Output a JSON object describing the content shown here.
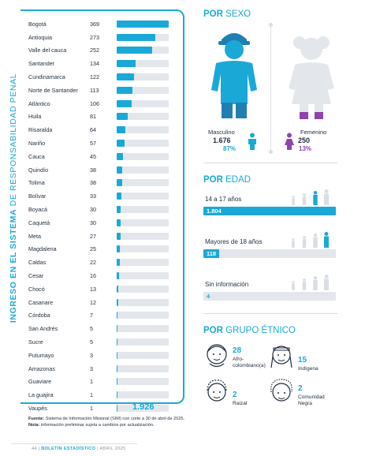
{
  "side_title": {
    "bold": "INGRESO EN EL SISTEMA",
    "regular": " DE RESPONSABILIDAD PENAL"
  },
  "departments": [
    {
      "name": "Bogotá",
      "value": 369
    },
    {
      "name": "Antioquia",
      "value": 273
    },
    {
      "name": "Valle del cauca",
      "value": 252
    },
    {
      "name": "Santander",
      "value": 134
    },
    {
      "name": "Cundinamarca",
      "value": 122
    },
    {
      "name": "Norte de Santander",
      "value": 113
    },
    {
      "name": "Atlántico",
      "value": 106
    },
    {
      "name": "Huila",
      "value": 81
    },
    {
      "name": "Risaralda",
      "value": 64
    },
    {
      "name": "Nariño",
      "value": 57
    },
    {
      "name": "Cauca",
      "value": 45
    },
    {
      "name": "Quindío",
      "value": 38
    },
    {
      "name": "Tolima",
      "value": 38
    },
    {
      "name": "Bolívar",
      "value": 33
    },
    {
      "name": "Boyacá",
      "value": 30
    },
    {
      "name": "Caquetá",
      "value": 30
    },
    {
      "name": "Meta",
      "value": 27
    },
    {
      "name": "Magdalena",
      "value": 25
    },
    {
      "name": "Caldas",
      "value": 22
    },
    {
      "name": "Cesar",
      "value": 16
    },
    {
      "name": "Chocó",
      "value": 13
    },
    {
      "name": "Casanare",
      "value": 12
    },
    {
      "name": "Córdoba",
      "value": 7
    },
    {
      "name": "San Andrés",
      "value": 5
    },
    {
      "name": "Sucre",
      "value": 5
    },
    {
      "name": "Putumayo",
      "value": 3
    },
    {
      "name": "Amazonas",
      "value": 3
    },
    {
      "name": "Guaviare",
      "value": 1
    },
    {
      "name": "La guajira",
      "value": 1
    },
    {
      "name": "Vaupés",
      "value": 1
    }
  ],
  "dept_max": 369,
  "total": "1.926",
  "sexo": {
    "title_bold": "POR",
    "title_rest": " SEXO",
    "male": {
      "label": "Masculino",
      "count": "1.676",
      "pct": "87%"
    },
    "female": {
      "label": "Femenino",
      "count": "250",
      "pct": "13%"
    }
  },
  "edad": {
    "title_bold": "POR",
    "title_rest": " EDAD",
    "groups": [
      {
        "label": "14 a 17 años",
        "value": "1.804",
        "fraction": 1.0
      },
      {
        "label": "Mayores de 18 años",
        "value": "118",
        "fraction": 0.12
      },
      {
        "label": "Sin información",
        "value": "4",
        "fraction": 0.0
      }
    ]
  },
  "etnico": {
    "title_bold": "POR",
    "title_rest": " GRUPO ÉTNICO",
    "groups": [
      {
        "value": "28",
        "label_1": "Afro-",
        "label_2": "colombiano(a)"
      },
      {
        "value": "15",
        "label_1": "Indígena",
        "label_2": ""
      },
      {
        "value": "2",
        "label_1": "Raizal",
        "label_2": ""
      },
      {
        "value": "2",
        "label_1": "Comunidad",
        "label_2": "Negra"
      }
    ]
  },
  "source": {
    "label": "Fuente:",
    "text": " Sistema de Información Misional (SIM) con corte a 30 de abril de 2025.",
    "note_label": "Nota:",
    "note": " información preliminar sujeta a cambios por actualización."
  },
  "footer": {
    "page": "44",
    "sep": "|",
    "name": "BOLETÍN ESTADÍSTICO",
    "date": "| ABRIL 2025"
  },
  "colors": {
    "accent": "#1aa9d6",
    "male": "#1aa9d6",
    "female": "#8e44ad",
    "track": "#e3e7ec"
  }
}
